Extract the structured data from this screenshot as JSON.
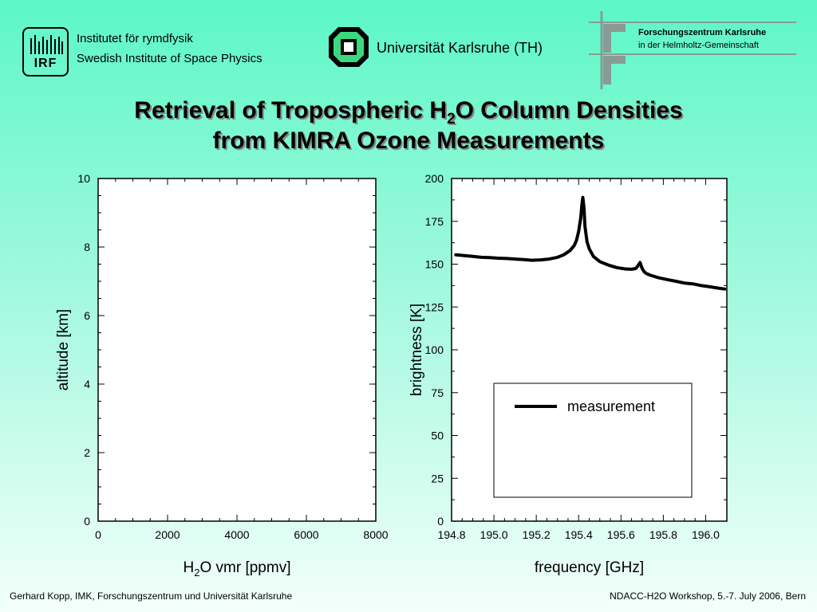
{
  "header": {
    "irf_logo_text": "IRF",
    "irf_line1": "Institutet för rymdfysik",
    "irf_line2": "Swedish Institute of Space Physics",
    "ka_name": "Universität Karlsruhe (TH)",
    "fzk_line1": "Forschungszentrum Karlsruhe",
    "fzk_line2": "in der Helmholtz-Gemeinschaft"
  },
  "title": {
    "line1_pre": "Retrieval of Tropospheric H",
    "line1_sub": "2",
    "line1_post": "O Column Densities",
    "line2": "from KIMRA Ozone Measurements"
  },
  "footer": {
    "left": "Gerhard Kopp, IMK, Forschungszentrum und Universität Karlsruhe",
    "right": "NDACC-H2O Workshop, 5.-7. July 2006, Bern"
  },
  "colors": {
    "background_top": "#5cf7c6",
    "background_bottom": "#f3fffb",
    "plot_bg": "#ffffff",
    "line": "#000000"
  },
  "chart_data": [
    {
      "type": "line",
      "xlabel_pre": "H",
      "xlabel_sub": "2",
      "xlabel_post": "O vmr [ppmv]",
      "ylabel": "altitude [km]",
      "xlim": [
        0,
        8000
      ],
      "ylim": [
        0,
        10
      ],
      "xticks": [
        0,
        2000,
        4000,
        6000,
        8000
      ],
      "xtick_labels": [
        "0",
        "2000",
        "4000",
        "6000",
        "8000"
      ],
      "yticks": [
        0,
        2,
        4,
        6,
        8,
        10
      ],
      "ytick_labels": [
        "0",
        "2",
        "4",
        "6",
        "8",
        "10"
      ],
      "series": []
    },
    {
      "type": "line",
      "xlabel": "frequency [GHz]",
      "ylabel": "brightness [K]",
      "xlim": [
        194.8,
        196.1
      ],
      "ylim": [
        0,
        200
      ],
      "xticks": [
        194.8,
        195.0,
        195.2,
        195.4,
        195.6,
        195.8,
        196.0
      ],
      "xtick_labels": [
        "194.8",
        "195.0",
        "195.2",
        "195.4",
        "195.6",
        "195.8",
        "196.0"
      ],
      "yticks": [
        0,
        25,
        50,
        75,
        100,
        125,
        150,
        175,
        200
      ],
      "ytick_labels": [
        "0",
        "25",
        "50",
        "75",
        "100",
        "125",
        "150",
        "175",
        "200"
      ],
      "legend": {
        "position": "lower-right",
        "entries": [
          "measurement"
        ]
      },
      "series": [
        {
          "name": "measurement",
          "x": [
            194.82,
            194.86,
            194.9,
            194.94,
            194.98,
            195.02,
            195.06,
            195.1,
            195.14,
            195.18,
            195.22,
            195.26,
            195.3,
            195.33,
            195.36,
            195.38,
            195.39,
            195.4,
            195.41,
            195.415,
            195.42,
            195.425,
            195.43,
            195.44,
            195.45,
            195.47,
            195.5,
            195.54,
            195.58,
            195.62,
            195.65,
            195.67,
            195.68,
            195.69,
            195.7,
            195.71,
            195.72,
            195.74,
            195.78,
            195.82,
            195.86,
            195.9,
            195.94,
            195.98,
            196.02,
            196.06,
            196.09
          ],
          "y": [
            155.5,
            155,
            154.5,
            154,
            153.8,
            153.5,
            153.3,
            153,
            152.7,
            152.3,
            152.5,
            153,
            154,
            155.5,
            158,
            161,
            164,
            169,
            177,
            184,
            189,
            183,
            172,
            163,
            159,
            154.5,
            151.5,
            149.5,
            148,
            147.2,
            147,
            147.5,
            149,
            151,
            147.5,
            145.5,
            144.5,
            143.5,
            142,
            141,
            140,
            139,
            138.5,
            137.5,
            136.8,
            136,
            135.5
          ]
        }
      ]
    }
  ]
}
